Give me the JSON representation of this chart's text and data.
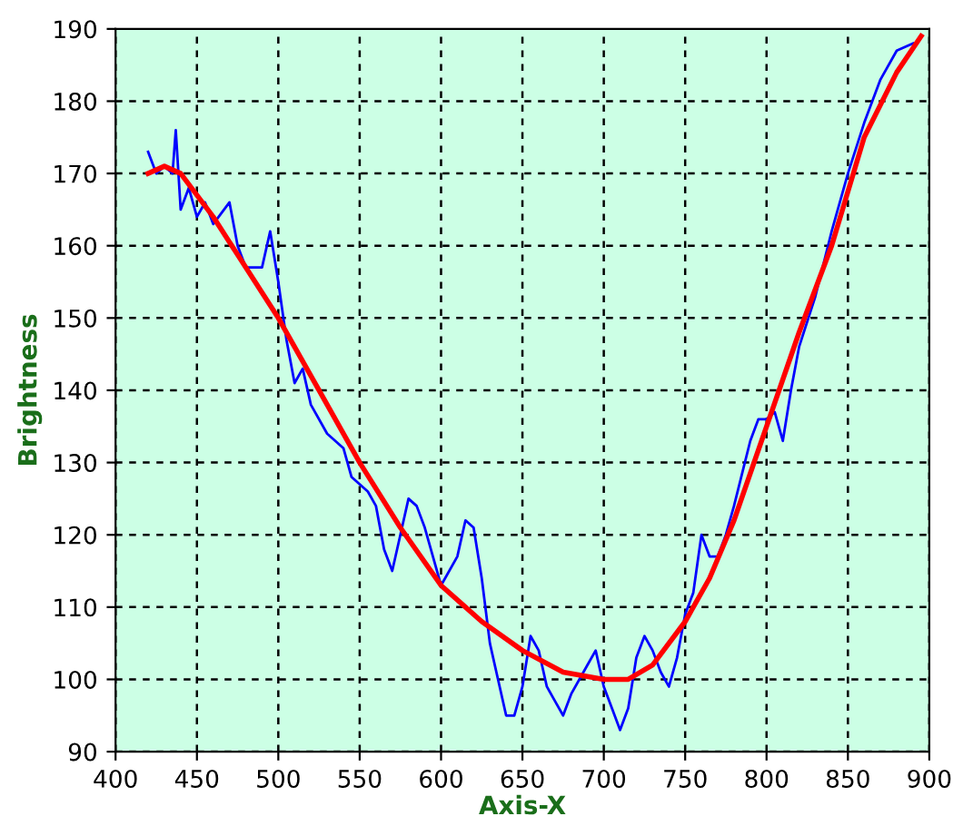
{
  "chart_data": {
    "type": "line",
    "xlabel": "Axis-X",
    "ylabel": "Brightness",
    "xlim": [
      400,
      900
    ],
    "ylim": [
      90,
      190
    ],
    "xticks": [
      400,
      450,
      500,
      550,
      600,
      650,
      700,
      750,
      800,
      850,
      900
    ],
    "yticks": [
      90,
      100,
      110,
      120,
      130,
      140,
      150,
      160,
      170,
      180,
      190
    ],
    "grid": true,
    "line_style": "solid",
    "marker": "none",
    "series": [
      {
        "color": "#0000ff",
        "x": [
          420,
          425,
          430,
          435,
          437,
          440,
          445,
          450,
          455,
          460,
          470,
          475,
          480,
          490,
          495,
          500,
          505,
          510,
          515,
          520,
          530,
          540,
          545,
          550,
          555,
          560,
          565,
          570,
          575,
          580,
          585,
          590,
          595,
          600,
          610,
          615,
          620,
          625,
          630,
          635,
          640,
          645,
          650,
          655,
          660,
          665,
          670,
          675,
          680,
          690,
          695,
          700,
          705,
          710,
          715,
          720,
          725,
          730,
          735,
          740,
          745,
          750,
          755,
          760,
          765,
          770,
          775,
          780,
          790,
          795,
          800,
          805,
          810,
          815,
          820,
          830,
          840,
          850,
          860,
          870,
          880,
          890
        ],
        "values": [
          173,
          170,
          171,
          170,
          176,
          165,
          168,
          164,
          166,
          163,
          166,
          160,
          157,
          157,
          162,
          155,
          147,
          141,
          143,
          138,
          134,
          132,
          128,
          127,
          126,
          124,
          118,
          115,
          120,
          125,
          124,
          121,
          117,
          113,
          117,
          122,
          121,
          114,
          105,
          100,
          95,
          95,
          99,
          106,
          104,
          99,
          97,
          95,
          98,
          102,
          104,
          99,
          96,
          93,
          96,
          103,
          106,
          104,
          101,
          99,
          103,
          109,
          112,
          120,
          117,
          117,
          120,
          124,
          133,
          136,
          136,
          137,
          133,
          140,
          146,
          153,
          162,
          170,
          177,
          183,
          187,
          188
        ]
      },
      {
        "color": "#ff0000",
        "x": [
          420,
          430,
          440,
          460,
          480,
          500,
          525,
          550,
          575,
          600,
          625,
          650,
          675,
          700,
          715,
          730,
          750,
          765,
          780,
          800,
          820,
          840,
          860,
          880,
          895
        ],
        "values": [
          170,
          171,
          170,
          164,
          157,
          150,
          140,
          130,
          121,
          113,
          108,
          104,
          101,
          100,
          100,
          102,
          108,
          114,
          122,
          135,
          148,
          160,
          175,
          184,
          189
        ]
      }
    ]
  }
}
